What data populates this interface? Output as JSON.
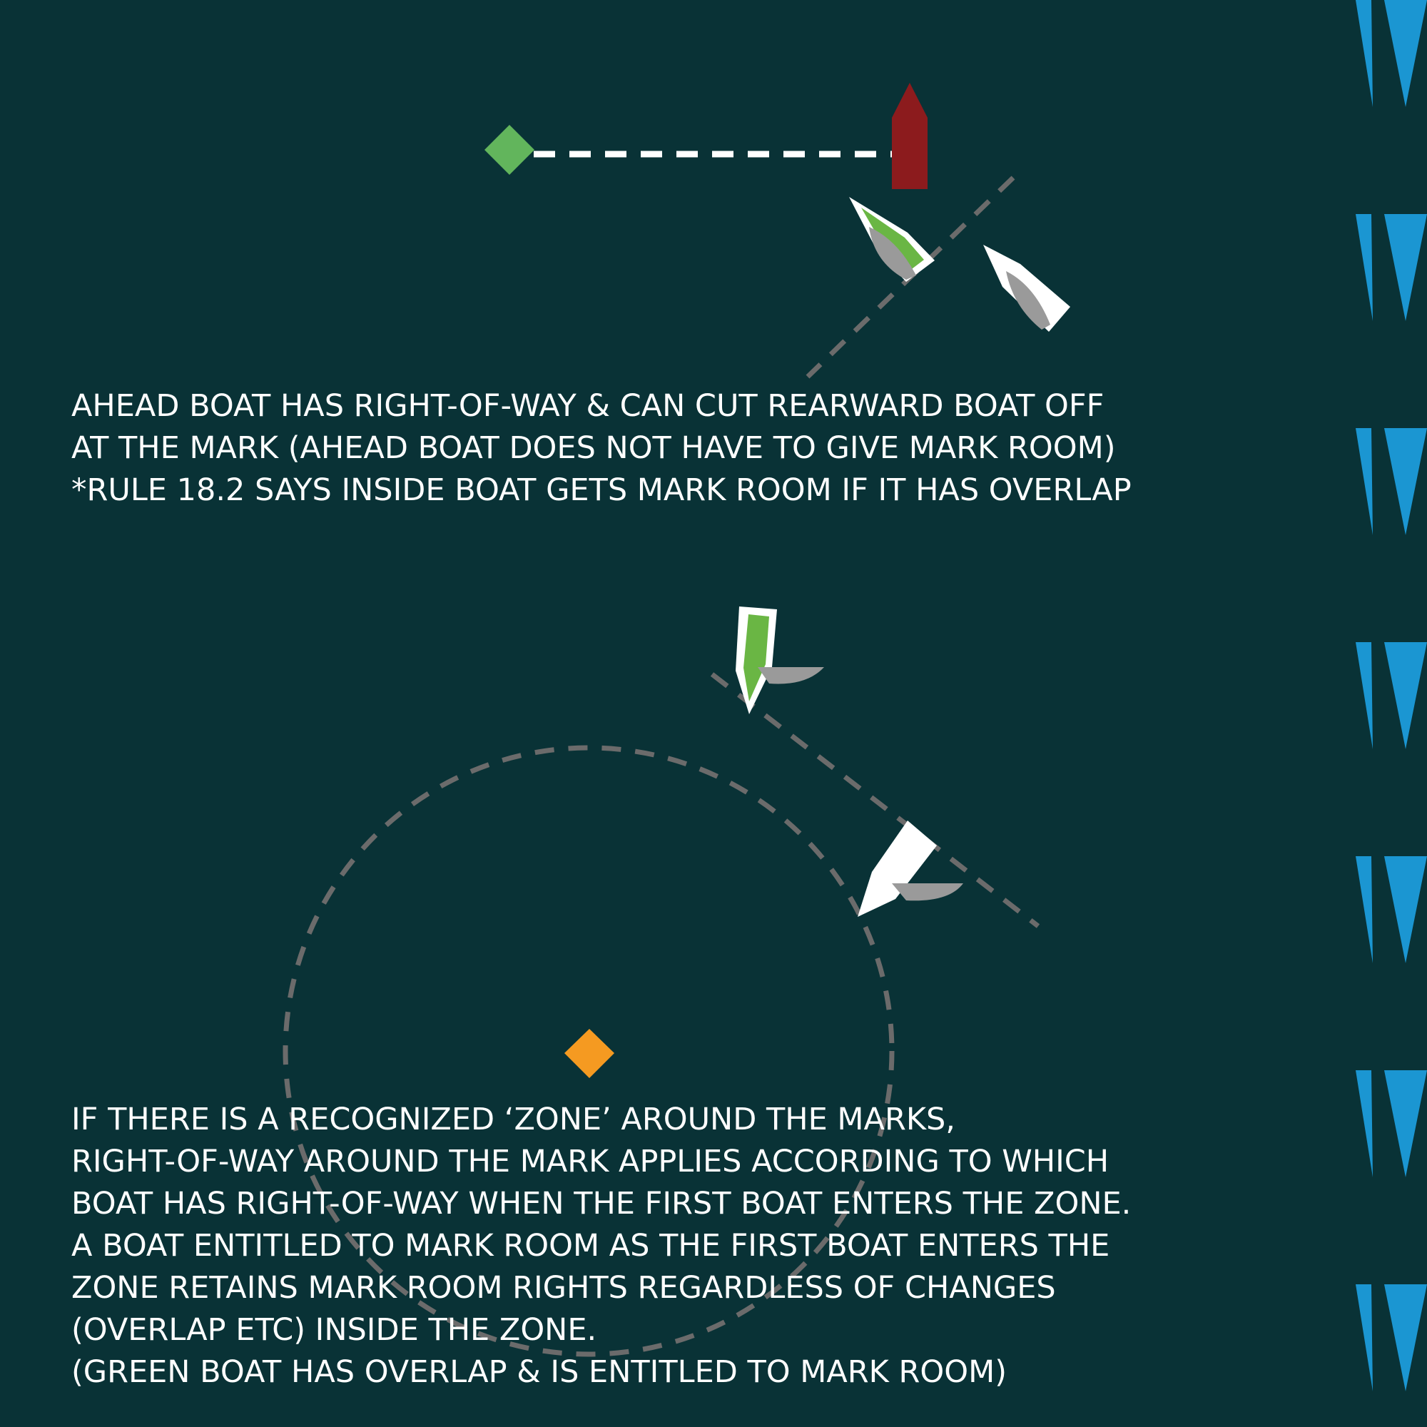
{
  "colors": {
    "background": "#093236",
    "start_mark": "#62b55c",
    "committee_boat": "#8c1b1d",
    "leeward_mark": "#f59a21",
    "green_boat": "#6ab644",
    "white_boat": "#ffffff",
    "sail": "#9a9a9a",
    "dashed_line": "#6b6b6b",
    "start_line": "#ffffff",
    "wind_indicator": "#1b96d2"
  },
  "icons": {
    "start_mark": "green-diamond-mark-icon",
    "committee_boat": "red-committee-boat-icon",
    "leeward_mark": "orange-diamond-mark-icon",
    "green_boat": "green-sailboat-icon",
    "white_boat": "white-sailboat-icon",
    "wind": "wind-w-icon"
  },
  "captions": {
    "top": [
      "AHEAD BOAT HAS RIGHT-OF-WAY & CAN CUT REARWARD BOAT OFF",
      "AT THE MARK (AHEAD BOAT DOES NOT HAVE TO GIVE MARK ROOM)",
      "*RULE 18.2 SAYS INSIDE BOAT GETS MARK ROOM IF IT HAS OVERLAP"
    ],
    "bottom": [
      "IF THERE IS A RECOGNIZED ‘ZONE’ AROUND THE MARKS,",
      "RIGHT-OF-WAY AROUND THE MARK APPLIES ACCORDING TO WHICH",
      "BOAT HAS RIGHT-OF-WAY WHEN THE FIRST BOAT ENTERS THE ZONE.",
      "A BOAT ENTITLED TO MARK ROOM AS THE FIRST BOAT ENTERS THE",
      "ZONE RETAINS MARK ROOM RIGHTS REGARDLESS OF CHANGES",
      "(OVERLAP ETC) INSIDE THE ZONE.",
      "(GREEN BOAT HAS OVERLAP & IS ENTITLED TO MARK ROOM)"
    ]
  }
}
